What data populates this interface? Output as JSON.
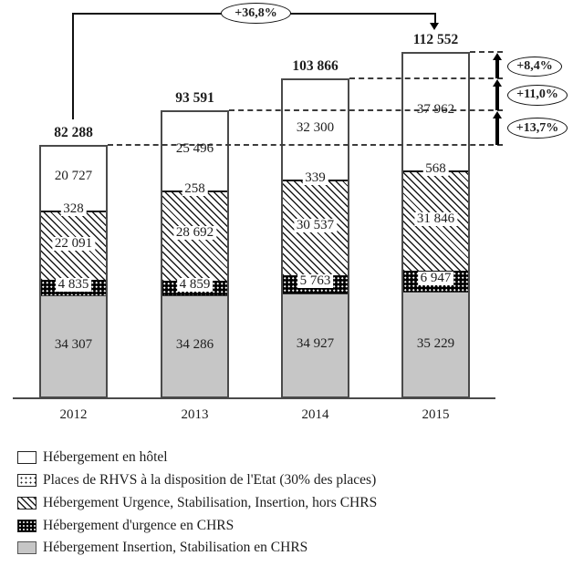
{
  "chart_data": {
    "type": "bar",
    "stacked": true,
    "categories": [
      "2012",
      "2013",
      "2014",
      "2015"
    ],
    "series": [
      {
        "name": "Hébergement Insertion, Stabilisation en CHRS",
        "pattern": "gray",
        "values": [
          34307,
          34286,
          34927,
          35229
        ],
        "labels": [
          "34 307",
          "34 286",
          "34 927",
          "35 229"
        ]
      },
      {
        "name": "Hébergement d'urgence en CHRS",
        "pattern": "blackdots",
        "values": [
          4835,
          4859,
          5763,
          6947
        ],
        "labels": [
          "4 835",
          "4 859",
          "5 763",
          "6 947"
        ]
      },
      {
        "name": "Hébergement Urgence, Stabilisation, Insertion, hors CHRS",
        "pattern": "hatch",
        "values": [
          22091,
          28692,
          30537,
          31846
        ],
        "labels": [
          "22 091",
          "28 692",
          "30 537",
          "31 846"
        ]
      },
      {
        "name": "Places de RHVS à la disposition de l'Etat (30% des places)",
        "pattern": "rhvs",
        "values": [
          328,
          258,
          339,
          568
        ],
        "labels": [
          "328",
          "258",
          "339",
          "568"
        ]
      },
      {
        "name": "Hébergement en hôtel",
        "pattern": "white",
        "values": [
          20727,
          25496,
          32300,
          37962
        ],
        "labels": [
          "20 727",
          "25 496",
          "32 300",
          "37 962"
        ]
      }
    ],
    "totals": {
      "values": [
        82288,
        93591,
        103866,
        112552
      ],
      "labels": [
        "82 288",
        "93 591",
        "103 866",
        "112 552"
      ]
    },
    "growth_annotations": [
      {
        "label": "+13,7%",
        "from": "2012",
        "to": "2013"
      },
      {
        "label": "+11,0%",
        "from": "2013",
        "to": "2014"
      },
      {
        "label": "+8,4%",
        "from": "2014",
        "to": "2015"
      }
    ],
    "overall_annotation": {
      "label": "+36,8%",
      "from": "2012",
      "to": "2015"
    },
    "ylim": [
      0,
      112552
    ],
    "grid": false,
    "legend_position": "bottom-left"
  },
  "legend": {
    "items": [
      {
        "label": "Hébergement en hôtel",
        "pattern": "white"
      },
      {
        "label": "Places de RHVS à la disposition de l'Etat (30% des places)",
        "pattern": "dots"
      },
      {
        "label": "Hébergement Urgence, Stabilisation, Insertion, hors CHRS",
        "pattern": "hatch"
      },
      {
        "label": "Hébergement d'urgence en CHRS",
        "pattern": "blackdots"
      },
      {
        "label": "Hébergement Insertion, Stabilisation en CHRS",
        "pattern": "gray"
      }
    ]
  },
  "colors": {
    "bar_gray": "#c6c6c6",
    "ink": "#1d1d1d",
    "bar_border": "#4a4a4a"
  }
}
